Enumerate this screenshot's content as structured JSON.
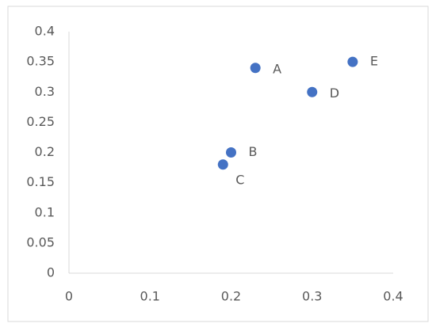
{
  "chart_data": {
    "type": "scatter",
    "x": [
      0.23,
      0.2,
      0.19,
      0.3,
      0.35
    ],
    "values": [
      0.34,
      0.2,
      0.18,
      0.3,
      0.35
    ],
    "point_labels": [
      "A",
      "B",
      "C",
      "D",
      "E"
    ],
    "color": "#4472c4",
    "xlim": [
      0,
      0.4
    ],
    "xticks": [
      0,
      0.1,
      0.2,
      0.3,
      0.4
    ],
    "ylim": [
      0,
      0.4
    ],
    "yticks": [
      0,
      0.05,
      0.1,
      0.15,
      0.2,
      0.25,
      0.3,
      0.35,
      0.4
    ],
    "grid": false
  }
}
